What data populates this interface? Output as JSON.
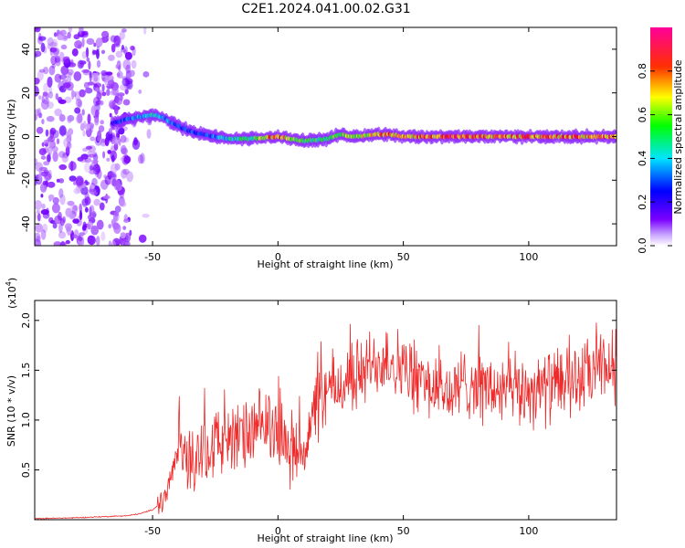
{
  "figure_title": "C2E1.2024.041.00.02.G31",
  "colors": {
    "snr_line": "#ee2a2a",
    "axis": "#000000",
    "background": "#ffffff"
  },
  "chart_data": [
    {
      "type": "heatmap",
      "name": "spectrogram",
      "xlabel": "Height of straight line (km)",
      "ylabel": "Frequency (Hz)",
      "xlim": [
        -97,
        135
      ],
      "ylim": [
        -50,
        50
      ],
      "xticks": [
        -50,
        0,
        50,
        100
      ],
      "yticks": [
        -40,
        -20,
        0,
        20,
        40
      ],
      "colorbar": {
        "label": "Normalized spectral amplitude",
        "range": [
          0,
          1
        ],
        "ticks": [
          0.0,
          0.2,
          0.4,
          0.6,
          0.8
        ],
        "tick_labels": [
          "0.0",
          "0.2",
          "0.4",
          "0.6",
          "0.8"
        ],
        "colormap": [
          "#ffffff",
          "#7a00ff",
          "#0000ff",
          "#00e5ff",
          "#00ff00",
          "#ffff00",
          "#ff0000",
          "#ff00aa"
        ]
      },
      "ridge": {
        "x": [
          -66,
          -60,
          -55,
          -50,
          -46,
          -42,
          -38,
          -34,
          -30,
          -25,
          -20,
          -10,
          0,
          5,
          10,
          20,
          25,
          30,
          40,
          45,
          50,
          60,
          70,
          80,
          90,
          100,
          110,
          120,
          130,
          135
        ],
        "freq": [
          6,
          8,
          9,
          10,
          9,
          6,
          4,
          2,
          1,
          0,
          -1,
          -1,
          0,
          -1,
          -2,
          -1,
          1,
          0,
          1,
          1,
          0,
          0,
          0,
          0,
          0,
          0,
          0,
          0,
          0,
          0
        ],
        "amplitude": [
          0.3,
          0.4,
          0.45,
          0.5,
          0.45,
          0.4,
          0.35,
          0.35,
          0.35,
          0.4,
          0.5,
          0.6,
          0.9,
          0.7,
          0.6,
          0.6,
          0.7,
          0.75,
          0.8,
          0.85,
          0.85,
          0.85,
          0.9,
          0.85,
          0.85,
          0.85,
          0.85,
          0.85,
          0.85,
          0.8
        ]
      }
    },
    {
      "type": "line",
      "name": "snr",
      "xlabel": "Height of straight line (km)",
      "ylabel": "SNR (10 * v/v)",
      "y_multiplier_label": "(x10",
      "y_multiplier_exp": "4",
      "xlim": [
        -97,
        135
      ],
      "ylim": [
        0,
        2.2
      ],
      "xticks": [
        -50,
        0,
        50,
        100
      ],
      "yticks": [
        0.5,
        1.0,
        1.5,
        2.0
      ],
      "ytick_labels": [
        "0.5",
        "1.0",
        "1.5",
        "2.0"
      ],
      "series": [
        {
          "x": [
            -97,
            -80,
            -70,
            -60,
            -55,
            -50,
            -46,
            -44,
            -42,
            -40,
            -38,
            -35,
            -30,
            -25,
            -20,
            -15,
            -10,
            -5,
            0,
            5,
            10,
            15,
            20,
            25,
            30,
            35,
            40,
            45,
            50,
            55,
            60,
            65,
            70,
            75,
            80,
            85,
            90,
            95,
            100,
            105,
            110,
            115,
            120,
            125,
            130,
            135
          ],
          "y": [
            0.01,
            0.02,
            0.03,
            0.04,
            0.06,
            0.1,
            0.18,
            0.3,
            0.5,
            0.7,
            0.62,
            0.6,
            0.72,
            0.78,
            0.8,
            0.82,
            0.86,
            0.95,
            0.88,
            0.72,
            0.68,
            1.1,
            1.3,
            1.35,
            1.42,
            1.5,
            1.6,
            1.62,
            1.5,
            1.42,
            1.35,
            1.3,
            1.25,
            1.4,
            1.35,
            1.3,
            1.28,
            1.28,
            1.3,
            1.32,
            1.35,
            1.38,
            1.4,
            1.45,
            1.5,
            1.55
          ]
        }
      ]
    }
  ]
}
